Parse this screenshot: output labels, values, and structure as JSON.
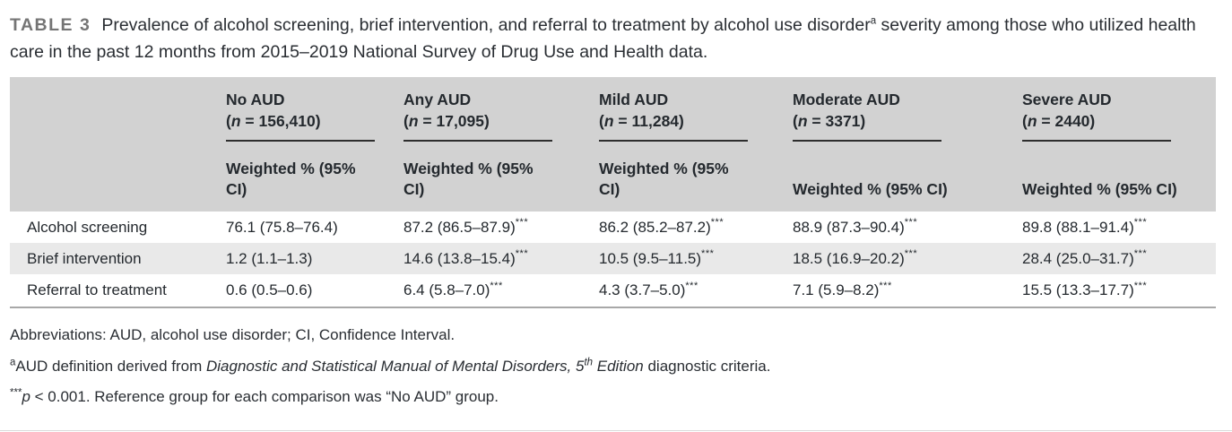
{
  "caption": {
    "label": "TABLE 3",
    "pre": "Prevalence of alcohol screening, brief intervention, and referral to treatment by alcohol use disorder",
    "sup": "a",
    "post": " severity among those who utilized health care in the past 12 months from 2015–2019 National Survey of Drug Use and Health data."
  },
  "table": {
    "columns": [
      {
        "group": "No AUD",
        "n": {
          "open": "(",
          "sym": "n",
          "rest": " = 156,410)"
        },
        "sub1": "Weighted % (95%",
        "sub2": "CI)"
      },
      {
        "group": "Any AUD",
        "n": {
          "open": "(",
          "sym": "n",
          "rest": " = 17,095)"
        },
        "sub1": "Weighted % (95% CI)",
        "sub2": ""
      },
      {
        "group": "Mild AUD",
        "n": {
          "open": "(",
          "sym": "n",
          "rest": " = 11,284)"
        },
        "sub1": "Weighted % (95%",
        "sub2": "CI)"
      },
      {
        "group": "Moderate AUD",
        "n": {
          "open": "(",
          "sym": "n",
          "rest": " = 3371)"
        },
        "sub1": "Weighted % (95% CI)",
        "sub2": ""
      },
      {
        "group": "Severe AUD",
        "n": {
          "open": "(",
          "sym": "n",
          "rest": " = 2440)"
        },
        "sub1": "Weighted % (95% CI)",
        "sub2": ""
      }
    ],
    "rows": [
      {
        "label": "Alcohol screening",
        "cells": [
          {
            "v": "76.1 (75.8–76.4)",
            "s": ""
          },
          {
            "v": "87.2 (86.5–87.9)",
            "s": "***"
          },
          {
            "v": "86.2 (85.2–87.2)",
            "s": "***"
          },
          {
            "v": "88.9 (87.3–90.4)",
            "s": "***"
          },
          {
            "v": "89.8 (88.1–91.4)",
            "s": "***"
          }
        ]
      },
      {
        "label": "Brief intervention",
        "cells": [
          {
            "v": "1.2 (1.1–1.3)",
            "s": ""
          },
          {
            "v": "14.6 (13.8–15.4)",
            "s": "***"
          },
          {
            "v": "10.5 (9.5–11.5)",
            "s": "***"
          },
          {
            "v": "18.5 (16.9–20.2)",
            "s": "***"
          },
          {
            "v": "28.4 (25.0–31.7)",
            "s": "***"
          }
        ]
      },
      {
        "label": "Referral to treatment",
        "cells": [
          {
            "v": "0.6 (0.5–0.6)",
            "s": ""
          },
          {
            "v": "6.4 (5.8–7.0)",
            "s": "***"
          },
          {
            "v": "4.3 (3.7–5.0)",
            "s": "***"
          },
          {
            "v": "7.1 (5.9–8.2)",
            "s": "***"
          },
          {
            "v": "15.5 (13.3–17.7)",
            "s": "***"
          }
        ]
      }
    ]
  },
  "footnotes": {
    "abbreviations": "Abbreviations: AUD, alcohol use disorder; CI, Confidence Interval.",
    "definition": {
      "sup": "a",
      "pre": "AUD definition derived from ",
      "italic1": "Diagnostic and Statistical Manual of Mental Disorders, 5",
      "italic_sup": "th",
      "italic2": " Edition",
      "post": " diagnostic criteria."
    },
    "significance": {
      "sup": "***",
      "italic": "p",
      "post": " < 0.001. Reference group for each comparison was “No AUD” group."
    }
  },
  "colors": {
    "header_bg": "#d2d2d2",
    "row_stripe": "#e9e9e9",
    "text": "#24292e",
    "table_label_gray": "#757575",
    "table_bottom_border": "#a8a8a8"
  }
}
